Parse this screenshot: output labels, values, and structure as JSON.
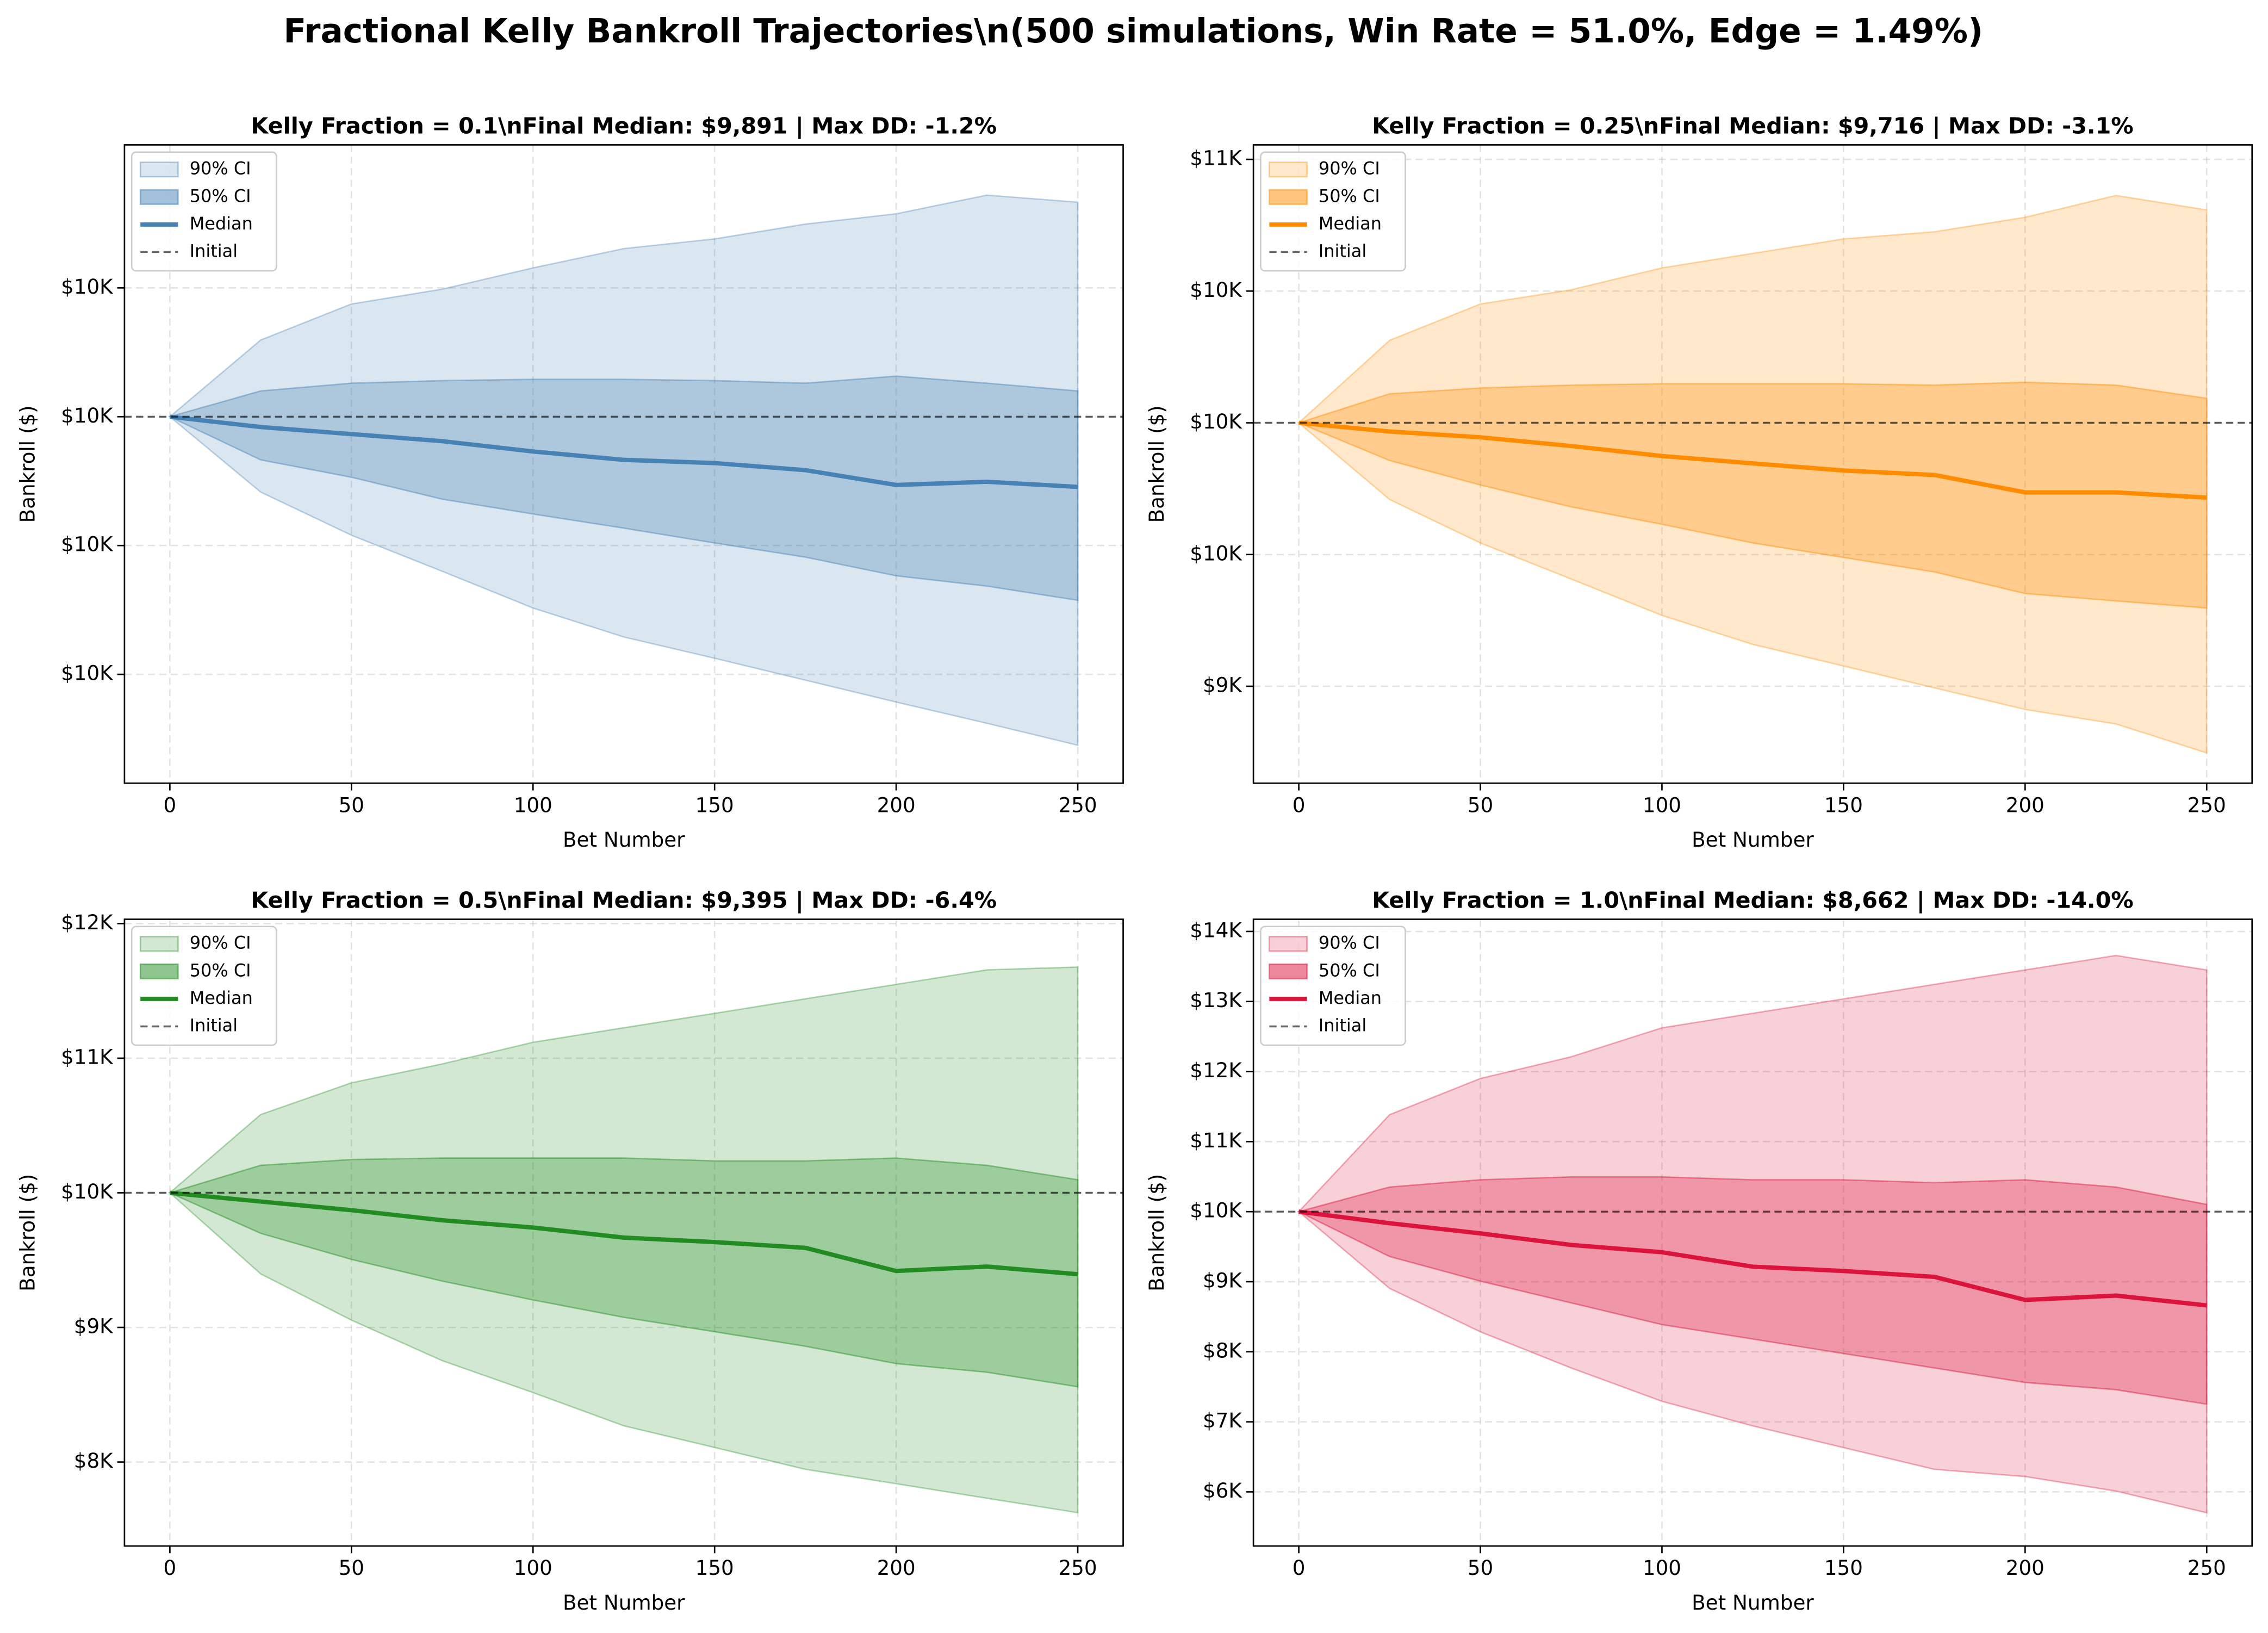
{
  "title": "Fractional Kelly Bankroll Trajectories\\n(500 simulations, Win Rate = 51.0%, Edge = 1.49%)",
  "chart_data": [
    {
      "type": "band-line",
      "title": "Kelly Fraction = 0.1\\nFinal Median: $9,891 | Max DD: -1.2%",
      "xlabel": "Bet Number",
      "ylabel": "Bankroll ($)",
      "x": [
        0,
        25,
        50,
        75,
        100,
        125,
        150,
        175,
        200,
        225,
        250
      ],
      "xlim": [
        -12.5,
        262.5
      ],
      "xticks": [
        0,
        50,
        100,
        150,
        200,
        250
      ],
      "ylim": [
        9431,
        10422
      ],
      "yticks": [
        {
          "value": 9600,
          "label": "$10K"
        },
        {
          "value": 9800,
          "label": "$10K"
        },
        {
          "value": 10000,
          "label": "$10K"
        },
        {
          "value": 10200,
          "label": "$10K"
        }
      ],
      "grid": true,
      "legend": "upper left",
      "series": [
        {
          "name": "90% CI",
          "color": "#4682b4",
          "opacity": 0.2,
          "upper": [
            10000,
            10119,
            10175,
            10198,
            10231,
            10261,
            10276,
            10299,
            10315,
            10344,
            10333
          ],
          "lower": [
            10000,
            9883,
            9816,
            9760,
            9703,
            9658,
            9625,
            9591,
            9557,
            9524,
            9490
          ]
        },
        {
          "name": "50% CI",
          "color": "#4682b4",
          "opacity": 0.3,
          "upper": [
            10000,
            10040,
            10052,
            10056,
            10058,
            10058,
            10056,
            10052,
            10063,
            10052,
            10040
          ],
          "lower": [
            10000,
            9933,
            9906,
            9872,
            9849,
            9827,
            9804,
            9782,
            9753,
            9737,
            9715
          ]
        },
        {
          "name": "Median",
          "color": "#4682b4",
          "values": [
            10000,
            9984,
            9973,
            9962,
            9946,
            9933,
            9928,
            9917,
            9894,
            9899,
            9891
          ]
        },
        {
          "name": "Initial",
          "color": "#000000",
          "value": 10000
        }
      ]
    },
    {
      "type": "band-line",
      "title": "Kelly Fraction = 0.25\\nFinal Median: $9,716 | Max DD: -3.1%",
      "xlabel": "Bet Number",
      "ylabel": "Bankroll ($)",
      "x": [
        0,
        25,
        50,
        75,
        100,
        125,
        150,
        175,
        200,
        225,
        250
      ],
      "xlim": [
        -12.5,
        262.5
      ],
      "xticks": [
        0,
        50,
        100,
        150,
        200,
        250
      ],
      "ylim": [
        8632,
        11055
      ],
      "yticks": [
        {
          "value": 9000,
          "label": "$9K"
        },
        {
          "value": 9500,
          "label": "$10K"
        },
        {
          "value": 10000,
          "label": "$10K"
        },
        {
          "value": 10500,
          "label": "$10K"
        },
        {
          "value": 11000,
          "label": "$11K"
        }
      ],
      "grid": true,
      "legend": "upper left",
      "series": [
        {
          "name": "90% CI",
          "color": "#ff8c00",
          "opacity": 0.2,
          "upper": [
            10000,
            10313,
            10451,
            10505,
            10588,
            10643,
            10698,
            10725,
            10780,
            10863,
            10808
          ],
          "lower": [
            10000,
            9709,
            9544,
            9407,
            9269,
            9159,
            9077,
            8994,
            8912,
            8857,
            8747
          ]
        },
        {
          "name": "50% CI",
          "color": "#ff8c00",
          "opacity": 0.3,
          "upper": [
            10000,
            10110,
            10132,
            10143,
            10148,
            10148,
            10148,
            10143,
            10154,
            10143,
            10093
          ],
          "lower": [
            10000,
            9857,
            9764,
            9681,
            9615,
            9544,
            9489,
            9434,
            9352,
            9324,
            9297
          ]
        },
        {
          "name": "Median",
          "color": "#ff8c00",
          "values": [
            10000,
            9967,
            9945,
            9912,
            9874,
            9846,
            9819,
            9802,
            9736,
            9736,
            9716
          ]
        },
        {
          "name": "Initial",
          "color": "#000000",
          "value": 10000
        }
      ]
    },
    {
      "type": "band-line",
      "title": "Kelly Fraction = 0.5\\nFinal Median: $9,395 | Max DD: -6.4%",
      "xlabel": "Bet Number",
      "ylabel": "Bankroll ($)",
      "x": [
        0,
        25,
        50,
        75,
        100,
        125,
        150,
        175,
        200,
        225,
        250
      ],
      "xlim": [
        -12.5,
        262.5
      ],
      "xticks": [
        0,
        50,
        100,
        150,
        200,
        250
      ],
      "ylim": [
        7376,
        12032
      ],
      "yticks": [
        {
          "value": 8000,
          "label": "$8K"
        },
        {
          "value": 9000,
          "label": "$9K"
        },
        {
          "value": 10000,
          "label": "$10K"
        },
        {
          "value": 11000,
          "label": "$11K"
        },
        {
          "value": 12000,
          "label": "$12K"
        }
      ],
      "grid": true,
      "legend": "upper left",
      "series": [
        {
          "name": "90% CI",
          "color": "#228b22",
          "opacity": 0.2,
          "upper": [
            10000,
            10581,
            10817,
            10957,
            11118,
            11226,
            11333,
            11441,
            11548,
            11656,
            11677
          ],
          "lower": [
            10000,
            9398,
            9054,
            8753,
            8516,
            8269,
            8108,
            7946,
            7839,
            7731,
            7624
          ]
        },
        {
          "name": "50% CI",
          "color": "#228b22",
          "opacity": 0.3,
          "upper": [
            10000,
            10204,
            10247,
            10258,
            10258,
            10258,
            10237,
            10237,
            10258,
            10204,
            10097
          ],
          "lower": [
            10000,
            9699,
            9505,
            9344,
            9204,
            9075,
            8968,
            8860,
            8731,
            8667,
            8559
          ]
        },
        {
          "name": "Median",
          "color": "#228b22",
          "values": [
            10000,
            9935,
            9871,
            9796,
            9742,
            9667,
            9634,
            9591,
            9419,
            9452,
            9395
          ]
        },
        {
          "name": "Initial",
          "color": "#000000",
          "value": 10000
        }
      ]
    },
    {
      "type": "band-line",
      "title": "Kelly Fraction = 1.0\\nFinal Median: $8,662 | Max DD: -14.0%",
      "xlabel": "Bet Number",
      "ylabel": "Bankroll ($)",
      "x": [
        0,
        25,
        50,
        75,
        100,
        125,
        150,
        175,
        200,
        225,
        250
      ],
      "xlim": [
        -12.5,
        262.5
      ],
      "xticks": [
        0,
        50,
        100,
        150,
        200,
        250
      ],
      "ylim": [
        5227,
        14174
      ],
      "yticks": [
        {
          "value": 6000,
          "label": "$6K"
        },
        {
          "value": 7000,
          "label": "$7K"
        },
        {
          "value": 8000,
          "label": "$8K"
        },
        {
          "value": 9000,
          "label": "$9K"
        },
        {
          "value": 10000,
          "label": "$10K"
        },
        {
          "value": 11000,
          "label": "$11K"
        },
        {
          "value": 12000,
          "label": "$12K"
        },
        {
          "value": 13000,
          "label": "$13K"
        },
        {
          "value": 14000,
          "label": "$14K"
        }
      ],
      "grid": true,
      "legend": "upper left",
      "series": [
        {
          "name": "90% CI",
          "color": "#dc143c",
          "opacity": 0.2,
          "upper": [
            10000,
            11384,
            11901,
            12211,
            12624,
            12831,
            13037,
            13244,
            13450,
            13657,
            13450
          ],
          "lower": [
            10000,
            8905,
            8285,
            7769,
            7293,
            6942,
            6632,
            6322,
            6219,
            6012,
            5702
          ]
        },
        {
          "name": "50% CI",
          "color": "#dc143c",
          "opacity": 0.3,
          "upper": [
            10000,
            10351,
            10455,
            10496,
            10496,
            10455,
            10455,
            10413,
            10455,
            10351,
            10103
          ],
          "lower": [
            10000,
            9360,
            9008,
            8698,
            8388,
            8182,
            7975,
            7769,
            7562,
            7459,
            7252
          ]
        },
        {
          "name": "Median",
          "color": "#dc143c",
          "values": [
            10000,
            9835,
            9690,
            9525,
            9421,
            9215,
            9153,
            9070,
            8740,
            8802,
            8662
          ]
        },
        {
          "name": "Initial",
          "color": "#000000",
          "value": 10000
        }
      ]
    }
  ]
}
